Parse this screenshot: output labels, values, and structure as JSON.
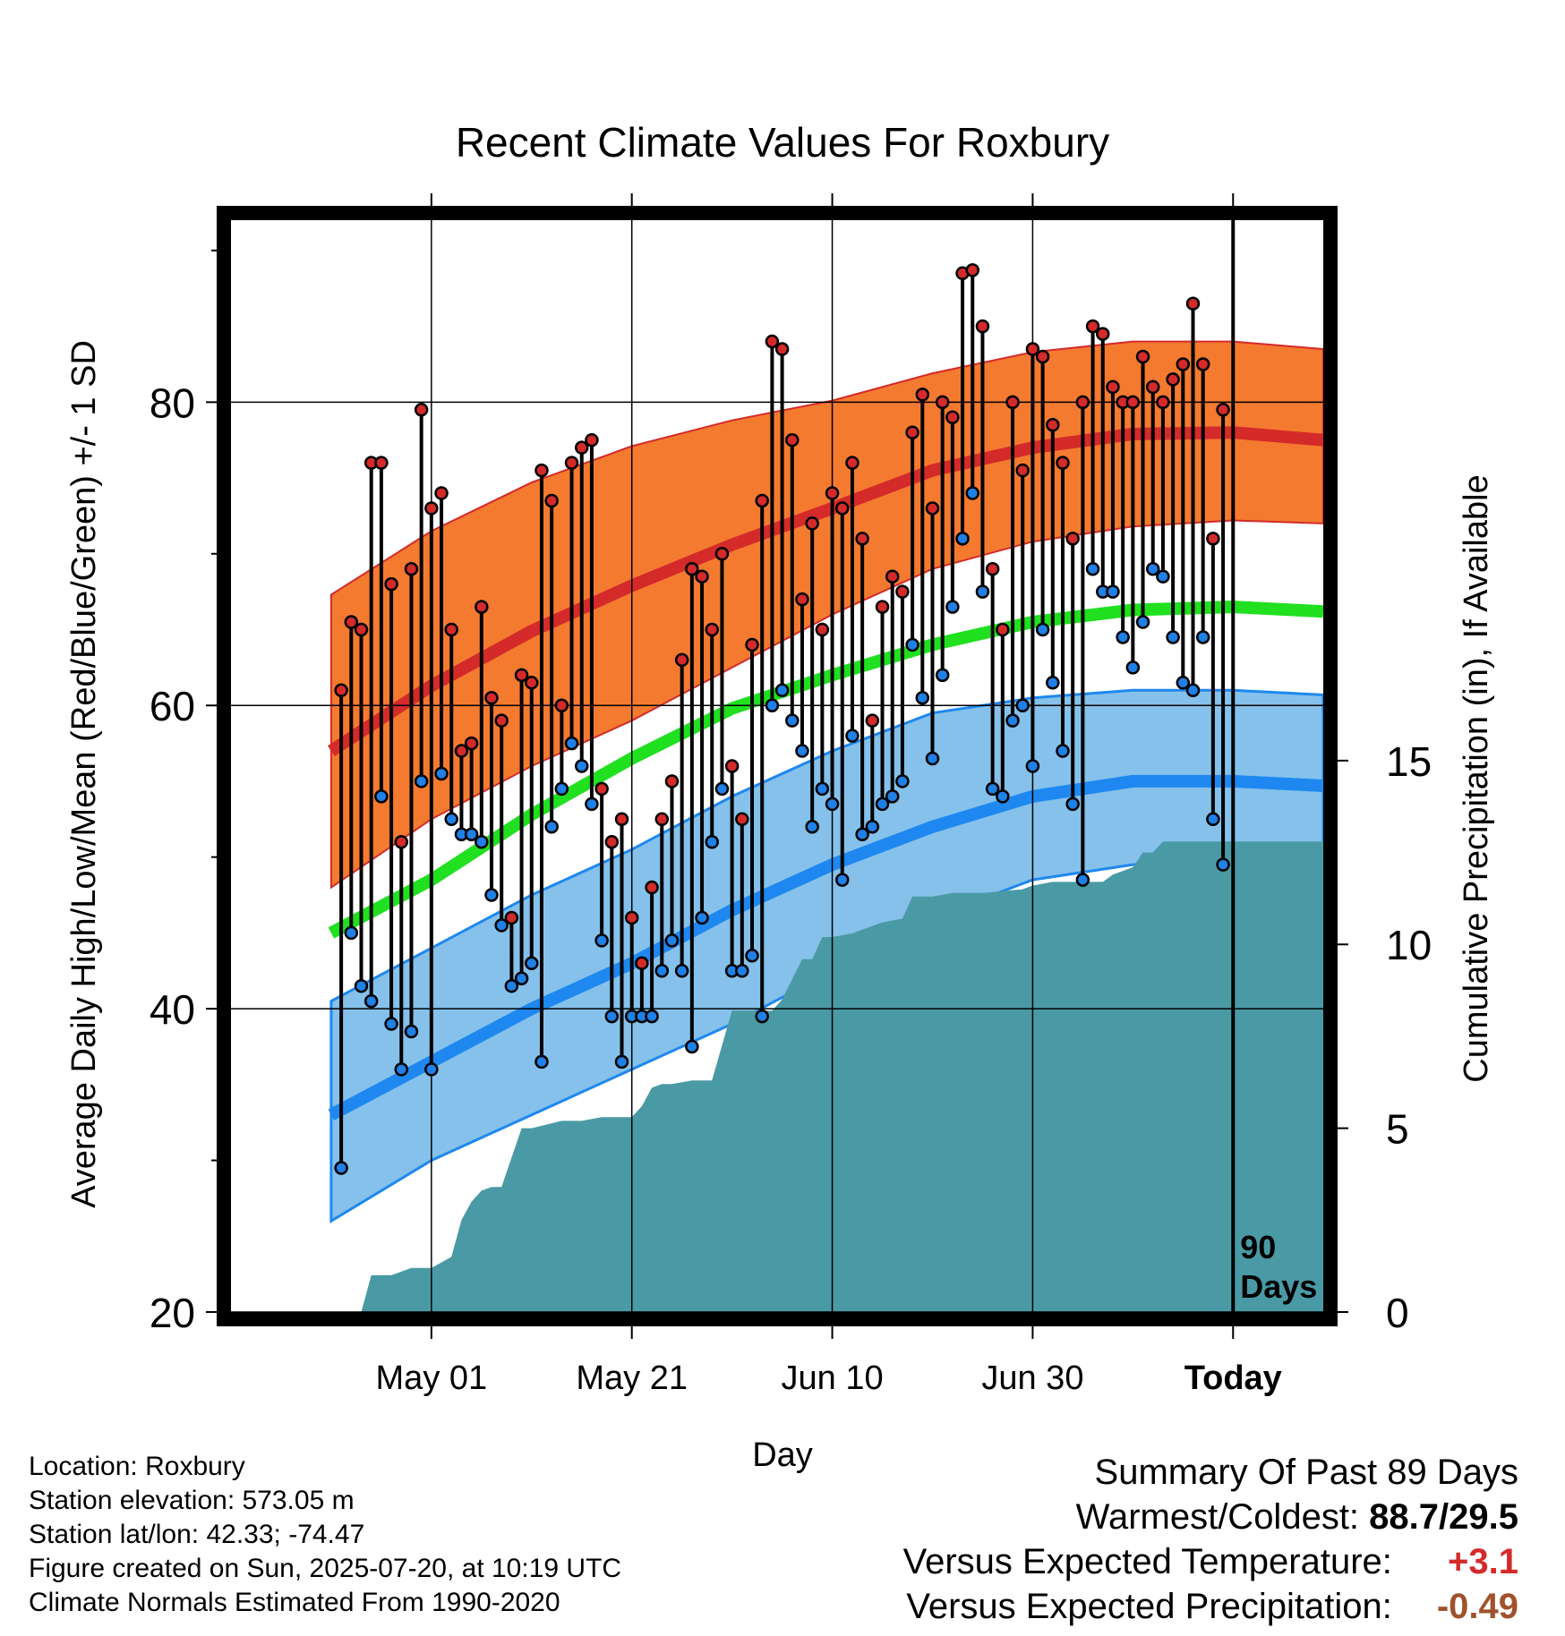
{
  "chart_data": {
    "type": "line",
    "title": "Recent Climate Values For Roxbury",
    "xlabel": "Day",
    "ylabel": "Average Daily High/Low/Mean (Red/Blue/Green) +/- 1 SD",
    "y2label": "Cumulative Precipitation (in), If Available",
    "ylim": [
      20,
      92
    ],
    "y2lim": [
      0,
      29.7
    ],
    "yticks": [
      20,
      40,
      60,
      80
    ],
    "y2ticks": [
      0,
      5,
      10,
      15
    ],
    "xlim": [
      -100,
      9
    ],
    "xticks": [
      {
        "day": -80,
        "label": "May 01"
      },
      {
        "day": -60,
        "label": "May 21"
      },
      {
        "day": -40,
        "label": "Jun 10"
      },
      {
        "day": -20,
        "label": "Jun 30"
      },
      {
        "day": 0,
        "label": "Today"
      }
    ],
    "grid": true,
    "today_marker_label": [
      "90",
      "Days"
    ],
    "normals": {
      "days": [
        -90,
        -80,
        -70,
        -60,
        -50,
        -40,
        -30,
        -20,
        -10,
        0,
        9
      ],
      "high_mean": [
        57.0,
        61.3,
        64.9,
        67.9,
        70.6,
        73.0,
        75.5,
        77.0,
        77.9,
        78.0,
        77.5
      ],
      "high_upper": [
        67.3,
        71.5,
        74.7,
        77.1,
        78.8,
        80.1,
        81.9,
        83.3,
        84.0,
        84.0,
        83.5
      ],
      "high_lower": [
        48.0,
        52.5,
        56.0,
        59.0,
        62.5,
        66.0,
        69.0,
        70.8,
        71.8,
        72.2,
        72.0
      ],
      "mean": [
        45.0,
        48.5,
        52.8,
        56.5,
        59.8,
        62.0,
        64.0,
        65.5,
        66.3,
        66.5,
        66.2
      ],
      "low_mean": [
        33.0,
        36.5,
        40.0,
        43.0,
        46.5,
        49.5,
        52.0,
        54.0,
        55.0,
        55.0,
        54.7
      ],
      "low_upper": [
        40.5,
        44.0,
        47.5,
        50.5,
        54.0,
        57.0,
        59.5,
        60.5,
        61.0,
        61.0,
        60.7
      ],
      "low_lower": [
        26.0,
        30.0,
        33.0,
        36.0,
        39.0,
        42.5,
        46.0,
        48.5,
        49.5,
        49.5,
        49.2
      ]
    },
    "series": [
      {
        "name": "Daily High",
        "color": "#d42a2a",
        "values": [
          61,
          65.5,
          65,
          76,
          76,
          68,
          51,
          69,
          79.5,
          73,
          74,
          65,
          57,
          57.5,
          66.5,
          60.5,
          59,
          46,
          62,
          61.5,
          75.5,
          73.5,
          60,
          76,
          77,
          77.5,
          54.5,
          51,
          52.5,
          46,
          43,
          48,
          52.5,
          55,
          63,
          69,
          68.5,
          65,
          70,
          56,
          52.5,
          64,
          73.5,
          84,
          83.5,
          77.5,
          67,
          72,
          65,
          74,
          73,
          76,
          71,
          59,
          66.5,
          68.5,
          67.5,
          78,
          80.5,
          73,
          80,
          79,
          88.5,
          88.7,
          85,
          69,
          65,
          80,
          75.5,
          83.5,
          83,
          78.5,
          76,
          71,
          80,
          85,
          84.5,
          81,
          80,
          80,
          83,
          81,
          80,
          81.5,
          82.5,
          86.5,
          82.5,
          71,
          79.5
        ]
      },
      {
        "name": "Daily Low",
        "color": "#1f80e6",
        "values": [
          29.5,
          45,
          41.5,
          40.5,
          54,
          39,
          36,
          38.5,
          55,
          36,
          55.5,
          52.5,
          51.5,
          51.5,
          51,
          47.5,
          45.5,
          41.5,
          42,
          43,
          36.5,
          52,
          54.5,
          57.5,
          56,
          53.5,
          44.5,
          39.5,
          36.5,
          39.5,
          39.5,
          39.5,
          42.5,
          44.5,
          42.5,
          37.5,
          46,
          51,
          54.5,
          42.5,
          42.5,
          43.5,
          39.5,
          60,
          61,
          59,
          57,
          52,
          54.5,
          53.5,
          48.5,
          58,
          51.5,
          52,
          53.5,
          54,
          55,
          64,
          60.5,
          56.5,
          62,
          66.5,
          71,
          74,
          67.5,
          54.5,
          54,
          59,
          60,
          56,
          65,
          61.5,
          57,
          53.5,
          48.5,
          69,
          67.5,
          67.5,
          64.5,
          62.5,
          65.5,
          69,
          68.5,
          64.5,
          61.5,
          61,
          64.5,
          52.5,
          49.5
        ]
      }
    ],
    "precip_cumulative": {
      "days": [
        -90,
        -87,
        -86,
        -84,
        -82,
        -80,
        -78,
        -77,
        -76,
        -75,
        -74,
        -73,
        -71,
        -70,
        -67,
        -65,
        -63,
        -60,
        -59,
        -58,
        -57,
        -56,
        -54,
        -52,
        -50,
        -49,
        -46,
        -45,
        -43,
        -42,
        -41,
        -40,
        -38,
        -37,
        -35,
        -33,
        -32,
        -30,
        -28,
        -25,
        -21,
        -20,
        -18,
        -15,
        -13,
        -12,
        -11,
        -10,
        -9,
        -8,
        -7,
        9
      ],
      "values": [
        0.0,
        0.0,
        1.0,
        1.0,
        1.2,
        1.2,
        1.5,
        2.5,
        3.0,
        3.3,
        3.4,
        3.4,
        5.0,
        5.0,
        5.2,
        5.2,
        5.3,
        5.3,
        5.6,
        6.1,
        6.2,
        6.2,
        6.3,
        6.3,
        8.2,
        8.2,
        8.2,
        8.5,
        9.6,
        9.6,
        10.2,
        10.2,
        10.3,
        10.4,
        10.6,
        10.7,
        11.3,
        11.3,
        11.4,
        11.4,
        11.5,
        11.6,
        11.7,
        11.7,
        11.7,
        11.9,
        12.0,
        12.1,
        12.5,
        12.5,
        12.8,
        12.8
      ]
    }
  },
  "footer": {
    "location": "Location: Roxbury",
    "elevation": "Station elevation: 573.05 m",
    "latlon": "Station lat/lon: 42.33; -74.47",
    "created": "Figure created on Sun, 2025-07-20, at 10:19 UTC",
    "normals_period": "Climate Normals Estimated From 1990-2020"
  },
  "summary": {
    "heading": "Summary Of Past 89 Days",
    "warmest_coldest_label": "Warmest/Coldest:",
    "warmest_coldest_value": "88.7/29.5",
    "temp_label": "Versus Expected Temperature:",
    "temp_value": "+3.1",
    "temp_color": "#d42a2a",
    "precip_label": "Versus Expected Precipitation:",
    "precip_value": "-0.49",
    "precip_color": "#a0522d"
  },
  "colors": {
    "high_band": "#f47a30",
    "high_line": "#d42a2a",
    "mean_line": "#20e020",
    "low_band": "#85c1ea",
    "low_line": "#1e88f0",
    "precip_fill": "#4a9aa5"
  }
}
